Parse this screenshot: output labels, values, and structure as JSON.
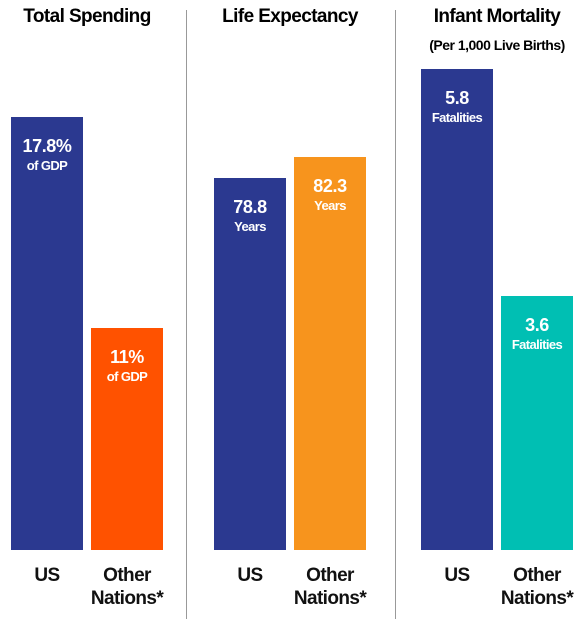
{
  "chart_data": [
    {
      "type": "bar",
      "title": "Total Spending",
      "categories": [
        "US",
        "Other Nations*"
      ],
      "values": [
        17.8,
        11
      ],
      "value_labels": [
        "17.8%",
        "11%"
      ],
      "unit_labels": [
        "of GDP",
        "of GDP"
      ],
      "colors": [
        "#2b3990",
        "#ff5200"
      ],
      "ylim": [
        3.8,
        19.66
      ]
    },
    {
      "type": "bar",
      "title": "Life Expectancy",
      "categories": [
        "US",
        "Other Nations*"
      ],
      "values": [
        78.8,
        82.3
      ],
      "value_labels": [
        "78.8",
        "82.3"
      ],
      "unit_labels": [
        "Years",
        "Years"
      ],
      "colors": [
        "#2b3990",
        "#f7941d"
      ],
      "ylim": [
        16.8,
        98.5
      ]
    },
    {
      "type": "bar",
      "title": "Infant Mortality",
      "subtitle": "(Per 1,000 Live Births)",
      "categories": [
        "US",
        "Other Nations*"
      ],
      "values": [
        5.8,
        3.6
      ],
      "value_labels": [
        "5.8",
        "3.6"
      ],
      "unit_labels": [
        "Fatalities",
        "Fatalities"
      ],
      "colors": [
        "#2b3990",
        "#00bfb3"
      ],
      "ylim": [
        1.14,
        5.89
      ]
    }
  ]
}
